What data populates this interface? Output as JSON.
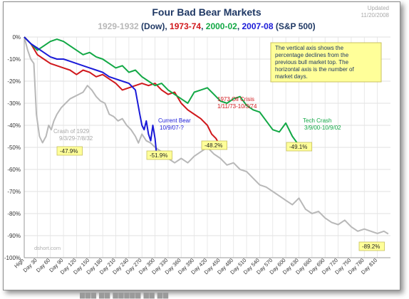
{
  "chart_data": {
    "type": "line",
    "title": "Four Bad Bear Markets",
    "subtitle_parts": [
      {
        "text": "1929-1932",
        "color": "#b8b8b8"
      },
      {
        "text": " (Dow), ",
        "color": "#1f3864"
      },
      {
        "text": "1973-74",
        "color": "#d0181c"
      },
      {
        "text": ", ",
        "color": "#1f3864"
      },
      {
        "text": "2000-02",
        "color": "#12a845"
      },
      {
        "text": ", ",
        "color": "#1f3864"
      },
      {
        "text": "2007-08",
        "color": "#1a1ad8"
      },
      {
        "text": " (S&P 500)",
        "color": "#1f3864"
      }
    ],
    "updated_line1": "Updated",
    "updated_line2": "11/20/2008",
    "xlabel": "",
    "ylabel": "",
    "xlim": [
      0,
      840
    ],
    "ylim": [
      -100,
      0
    ],
    "grid": true,
    "y_ticks": [
      0,
      -10,
      -20,
      -30,
      -40,
      -50,
      -60,
      -70,
      -80,
      -90,
      -100
    ],
    "y_tick_labels": [
      "0%",
      "-10%",
      "-20%",
      "-30%",
      "-40%",
      "-50%",
      "-60%",
      "-70%",
      "-80%",
      "-90%",
      "-100%"
    ],
    "x_ticks": [
      0,
      30,
      60,
      90,
      120,
      150,
      180,
      210,
      240,
      270,
      300,
      330,
      360,
      390,
      420,
      450,
      480,
      510,
      540,
      570,
      600,
      630,
      660,
      690,
      720,
      750,
      780,
      810
    ],
    "x_tick_labels": [
      "High",
      "Day 30",
      "Day 60",
      "Day 90",
      "Day 120",
      "Day 150",
      "Day 180",
      "Day 210",
      "Day 240",
      "Day 270",
      "Day 300",
      "Day 330",
      "Day 360",
      "Day 390",
      "Day 420",
      "Day 450",
      "Day 480",
      "Day 510",
      "Day 540",
      "Day 570",
      "Day 600",
      "Day 630",
      "Day 660",
      "Day 690",
      "Day 720",
      "Day 750",
      "Day 780",
      "Day 810"
    ],
    "note": "The vertical axis shows the percentage declines from the previous bull market top. The horizontal axis is the number of market days.",
    "note_color": "#ffff99",
    "source": "dshort.com",
    "series": [
      {
        "name": "Crash of 1929",
        "color": "#b8b8b8",
        "x": [
          0,
          8,
          15,
          22,
          28,
          35,
          42,
          50,
          56,
          62,
          68,
          75,
          85,
          95,
          105,
          115,
          125,
          135,
          145,
          155,
          165,
          175,
          185,
          195,
          205,
          215,
          225,
          235,
          245,
          255,
          262,
          270,
          280,
          290,
          300,
          315,
          330,
          345,
          360,
          375,
          390,
          405,
          420,
          435,
          450,
          465,
          480,
          495,
          510,
          525,
          540,
          555,
          570,
          585,
          600,
          615,
          630,
          645,
          660,
          675,
          690,
          705,
          720,
          735,
          750,
          765,
          780,
          795,
          810,
          825,
          835
        ],
        "y": [
          0,
          -6,
          -10,
          -12,
          -35,
          -45,
          -47.9,
          -45,
          -40,
          -42,
          -38,
          -35,
          -32,
          -30,
          -28,
          -27,
          -26,
          -25,
          -22,
          -24,
          -27,
          -29,
          -30,
          -35,
          -36,
          -38,
          -37,
          -40,
          -42,
          -45,
          -48,
          -44,
          -47,
          -48,
          -50,
          -52,
          -55,
          -57,
          -55,
          -57,
          -54,
          -52,
          -50,
          -53,
          -55,
          -58,
          -57,
          -60,
          -61,
          -64,
          -67,
          -68,
          -70,
          -72,
          -74,
          -76,
          -73,
          -78,
          -80,
          -79,
          -82,
          -84,
          -85,
          -83,
          -86,
          -88,
          -87,
          -88,
          -89,
          -88,
          -89.2
        ]
      },
      {
        "name": "1973 Oil Crisis",
        "color": "#d0181c",
        "x": [
          0,
          15,
          30,
          45,
          60,
          75,
          90,
          105,
          120,
          135,
          150,
          165,
          180,
          195,
          210,
          225,
          240,
          255,
          270,
          285,
          300,
          315,
          330,
          345,
          360,
          375,
          390,
          405,
          420,
          430,
          440,
          446
        ],
        "y": [
          0,
          -3,
          -8,
          -10,
          -12,
          -13,
          -14,
          -15,
          -17,
          -15,
          -16,
          -18,
          -17,
          -19,
          -21,
          -24,
          -23,
          -22,
          -21,
          -22,
          -21,
          -24,
          -26,
          -25,
          -30,
          -33,
          -35,
          -37,
          -40,
          -44,
          -46,
          -48.2
        ]
      },
      {
        "name": "Tech Crash",
        "color": "#12a845",
        "x": [
          0,
          15,
          30,
          45,
          60,
          75,
          90,
          105,
          120,
          135,
          150,
          165,
          180,
          195,
          210,
          225,
          240,
          255,
          270,
          285,
          300,
          315,
          330,
          345,
          360,
          375,
          390,
          405,
          420,
          435,
          450,
          465,
          480,
          495,
          510,
          525,
          540,
          555,
          570,
          585,
          600,
          615,
          630
        ],
        "y": [
          0,
          -3,
          -6,
          -4,
          -2,
          -1,
          -2,
          -4,
          -6,
          -8,
          -7,
          -9,
          -10,
          -12,
          -14,
          -13,
          -16,
          -15,
          -18,
          -20,
          -22,
          -21,
          -24,
          -26,
          -28,
          -30,
          -25,
          -24,
          -23,
          -26,
          -29,
          -30,
          -28,
          -27,
          -31,
          -33,
          -34,
          -38,
          -42,
          -43,
          -39,
          -45,
          -49.1
        ]
      },
      {
        "name": "Current Bear",
        "color": "#1a1ad8",
        "x": [
          0,
          15,
          30,
          45,
          60,
          75,
          90,
          105,
          120,
          135,
          150,
          165,
          180,
          195,
          210,
          225,
          240,
          255,
          265,
          270,
          275,
          280,
          285,
          290,
          295,
          300,
          303
        ],
        "y": [
          0,
          -3,
          -5,
          -7,
          -9,
          -10,
          -10,
          -11,
          -12,
          -13,
          -14,
          -15,
          -16,
          -18,
          -19,
          -20,
          -21,
          -24,
          -35,
          -40,
          -42,
          -38,
          -44,
          -47,
          -40,
          -46,
          -51.9
        ]
      }
    ],
    "annotations": [
      {
        "label": "Crash of 1929",
        "dates": "9/3/29-7/8/32",
        "value": "-47.9%",
        "color": "#a8a8a8"
      },
      {
        "label": "Current Bear",
        "dates": "10/9/07-?",
        "value": "-51.9%",
        "color": "#1a1ad8"
      },
      {
        "label": "1973 Oil Crisis",
        "dates": "1/11/73-10/3/74",
        "value": "-48.2%",
        "color": "#d0181c"
      },
      {
        "label": "Tech Crash",
        "dates": "3/9/00-10/9/02",
        "value": "-49.1%",
        "color": "#12a845"
      },
      {
        "label": "",
        "dates": "",
        "value": "-89.2%",
        "color": "#333333"
      }
    ]
  }
}
